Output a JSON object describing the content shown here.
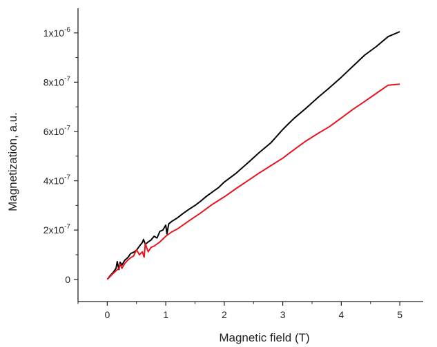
{
  "chart_data": {
    "type": "line",
    "title": "",
    "xlabel": "Magnetic field (T)",
    "ylabel": "Magnetization, a.u.",
    "xlim": [
      -0.5,
      5.4
    ],
    "ylim": [
      -9e-08,
      1.1e-06
    ],
    "x_ticks": [
      {
        "value": 0,
        "label": "0"
      },
      {
        "value": 1,
        "label": "1"
      },
      {
        "value": 2,
        "label": "2"
      },
      {
        "value": 3,
        "label": "3"
      },
      {
        "value": 4,
        "label": "4"
      },
      {
        "value": 5,
        "label": "5"
      }
    ],
    "y_ticks": [
      {
        "value": 0,
        "base": "0",
        "exp": ""
      },
      {
        "value": 2e-07,
        "base": "2x10",
        "exp": "-7"
      },
      {
        "value": 4e-07,
        "base": "4x10",
        "exp": "-7"
      },
      {
        "value": 6e-07,
        "base": "6x10",
        "exp": "-7"
      },
      {
        "value": 8e-07,
        "base": "8x10",
        "exp": "-7"
      },
      {
        "value": 1e-06,
        "base": "1x10",
        "exp": "-6"
      }
    ],
    "grid": false,
    "legend": "none",
    "series": [
      {
        "color": "#000000",
        "x": [
          0,
          0.05,
          0.1,
          0.15,
          0.17,
          0.2,
          0.22,
          0.25,
          0.3,
          0.35,
          0.4,
          0.45,
          0.5,
          0.55,
          0.6,
          0.62,
          0.65,
          0.7,
          0.75,
          0.8,
          0.85,
          0.9,
          0.95,
          1.0,
          1.02,
          1.05,
          1.1,
          1.2,
          1.3,
          1.4,
          1.5,
          1.6,
          1.7,
          1.8,
          1.9,
          2.0,
          2.2,
          2.4,
          2.6,
          2.8,
          3.0,
          3.1,
          3.2,
          3.4,
          3.6,
          3.8,
          4.0,
          4.2,
          4.4,
          4.6,
          4.8,
          5.0
        ],
        "y": [
          0,
          1.5e-08,
          2.8e-08,
          4.5e-08,
          7.2e-08,
          4e-08,
          7e-08,
          5.8e-08,
          7.8e-08,
          8.8e-08,
          1.05e-07,
          1.1e-07,
          1.18e-07,
          1.35e-07,
          1.5e-07,
          1.62e-07,
          1.42e-07,
          1.52e-07,
          1.6e-07,
          1.75e-07,
          1.68e-07,
          1.95e-07,
          2e-07,
          2.2e-07,
          1.85e-07,
          2.25e-07,
          2.35e-07,
          2.5e-07,
          2.68e-07,
          2.85e-07,
          3e-07,
          3.18e-07,
          3.38e-07,
          3.55e-07,
          3.72e-07,
          3.95e-07,
          4.3e-07,
          4.72e-07,
          5.15e-07,
          5.55e-07,
          6.08e-07,
          6.32e-07,
          6.55e-07,
          6.95e-07,
          7.38e-07,
          7.78e-07,
          8.2e-07,
          8.65e-07,
          9.1e-07,
          9.45e-07,
          9.85e-07,
          1.005e-06
        ]
      },
      {
        "color": "#e8141c",
        "x": [
          0,
          0.05,
          0.1,
          0.15,
          0.2,
          0.22,
          0.25,
          0.3,
          0.35,
          0.4,
          0.45,
          0.5,
          0.55,
          0.6,
          0.63,
          0.65,
          0.7,
          0.75,
          0.8,
          0.9,
          1.0,
          1.1,
          1.2,
          1.4,
          1.6,
          1.8,
          2.0,
          2.2,
          2.4,
          2.6,
          2.8,
          3.0,
          3.2,
          3.4,
          3.6,
          3.8,
          4.0,
          4.2,
          4.4,
          4.6,
          4.8,
          5.0
        ],
        "y": [
          0,
          1.2e-08,
          2.4e-08,
          3.5e-08,
          4.5e-08,
          6.2e-08,
          4.5e-08,
          6.5e-08,
          7.8e-08,
          8.8e-08,
          9.5e-08,
          1.2e-07,
          1e-07,
          1.12e-07,
          9e-08,
          1.45e-07,
          1.12e-07,
          1.3e-07,
          1.35e-07,
          1.52e-07,
          1.75e-07,
          1.92e-07,
          2.05e-07,
          2.38e-07,
          2.7e-07,
          3.05e-07,
          3.35e-07,
          3.68e-07,
          4e-07,
          4.32e-07,
          4.62e-07,
          4.92e-07,
          5.28e-07,
          5.62e-07,
          5.92e-07,
          6.2e-07,
          6.55e-07,
          6.9e-07,
          7.22e-07,
          7.55e-07,
          7.88e-07,
          7.92e-07
        ]
      }
    ]
  }
}
